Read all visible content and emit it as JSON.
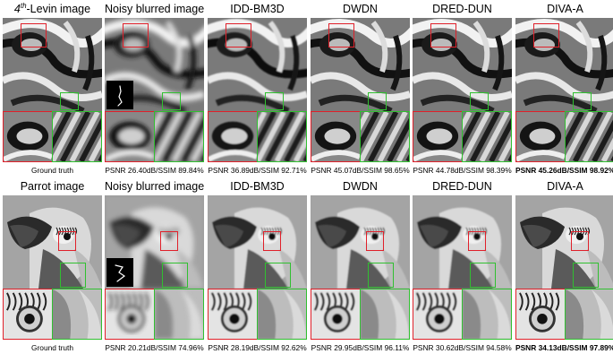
{
  "rows": [
    {
      "title_rich": [
        "4",
        "th",
        "-Levin image"
      ],
      "columns": [
        {
          "title": "",
          "caption": "Ground truth",
          "bold": false
        },
        {
          "title": "Noisy blurred image",
          "caption": "PSNR 26.40dB/SSIM 89.84%",
          "bold": false
        },
        {
          "title": "IDD-BM3D",
          "caption": "PSNR 36.89dB/SSIM 92.71%",
          "bold": false
        },
        {
          "title": "DWDN",
          "caption": "PSNR 45.07dB/SSIM 98.65%",
          "bold": false
        },
        {
          "title": "DRED-DUN",
          "caption": "PSNR 44.78dB/SSIM 98.39%",
          "bold": false
        },
        {
          "title": "DIVA-A",
          "caption": "PSNR 45.26dB/SSIM 98.92%",
          "bold": true
        }
      ]
    },
    {
      "columns": [
        {
          "title": "Parrot image",
          "caption": "Ground truth",
          "bold": false
        },
        {
          "title": "Noisy blurred image",
          "caption": "PSNR 20.21dB/SSIM 74.96%",
          "bold": false
        },
        {
          "title": "IDD-BM3D",
          "caption": "PSNR 28.19dB/SSIM 92.62%",
          "bold": false
        },
        {
          "title": "DWDN",
          "caption": "PSNR 29.95dB/SSIM 96.11%",
          "bold": false
        },
        {
          "title": "DRED-DUN",
          "caption": "PSNR 30.62dB/SSIM 94.58%",
          "bold": false
        },
        {
          "title": "DIVA-A",
          "caption": "PSNR 34.13dB/SSIM 97.89%",
          "bold": true
        }
      ]
    }
  ]
}
